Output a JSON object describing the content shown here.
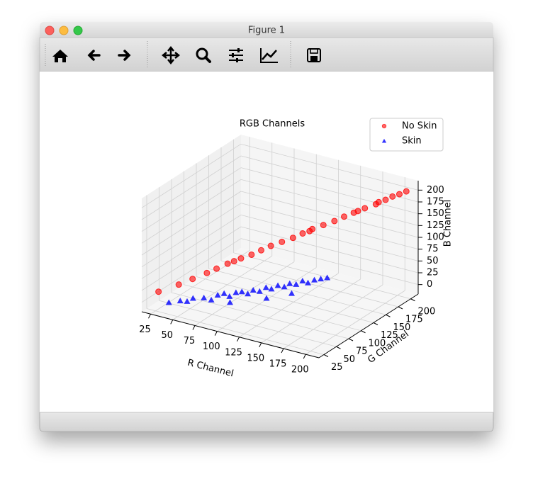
{
  "window": {
    "title": "Figure 1"
  },
  "chart_data": {
    "type": "scatter3d",
    "title": "RGB Channels",
    "xlabel": "R Channel",
    "ylabel": "G Channel",
    "zlabel": "B Channel",
    "xlim": [
      15,
      215
    ],
    "ylim": [
      15,
      215
    ],
    "zlim": [
      -20,
      220
    ],
    "xticks": [
      25,
      50,
      75,
      100,
      125,
      150,
      175,
      200
    ],
    "yticks": [
      25,
      50,
      75,
      100,
      125,
      150,
      175,
      200
    ],
    "zticks": [
      0,
      25,
      50,
      75,
      100,
      125,
      150,
      175,
      200
    ],
    "grid": true,
    "legend": "upper right",
    "series": [
      {
        "name": "No Skin",
        "color": "#ff0000",
        "marker": "circle",
        "x": [
          30,
          45,
          55,
          65,
          72,
          80,
          85,
          90,
          98,
          105,
          112,
          120,
          128,
          135,
          140,
          142,
          150,
          158,
          165,
          172,
          175,
          180,
          188,
          190,
          195,
          200,
          205,
          210
        ],
        "y": [
          22,
          36,
          46,
          57,
          64,
          72,
          76,
          81,
          88,
          95,
          102,
          110,
          118,
          125,
          130,
          132,
          140,
          148,
          155,
          162,
          165,
          170,
          178,
          180,
          185,
          190,
          195,
          200
        ],
        "z": [
          25,
          38,
          48,
          58,
          66,
          75,
          80,
          85,
          92,
          100,
          108,
          115,
          122,
          130,
          134,
          138,
          145,
          152,
          160,
          167,
          170,
          175,
          182,
          186,
          190,
          196,
          200,
          205
        ]
      },
      {
        "name": "Skin",
        "color": "#0000ff",
        "marker": "triangle",
        "x": [
          40,
          50,
          55,
          60,
          70,
          75,
          80,
          85,
          90,
          95,
          100,
          105,
          110,
          115,
          120,
          125,
          130,
          135,
          140,
          145,
          150,
          155,
          160,
          165,
          170,
          125,
          95,
          145
        ],
        "y": [
          25,
          30,
          35,
          38,
          42,
          48,
          52,
          56,
          58,
          62,
          65,
          68,
          70,
          74,
          78,
          80,
          84,
          88,
          90,
          94,
          98,
          100,
          104,
          108,
          112,
          70,
          50,
          85
        ],
        "z": [
          5,
          10,
          8,
          15,
          18,
          12,
          22,
          25,
          20,
          28,
          30,
          26,
          35,
          32,
          40,
          38,
          45,
          42,
          50,
          48,
          55,
          52,
          58,
          60,
          62,
          25,
          15,
          35
        ]
      }
    ]
  }
}
